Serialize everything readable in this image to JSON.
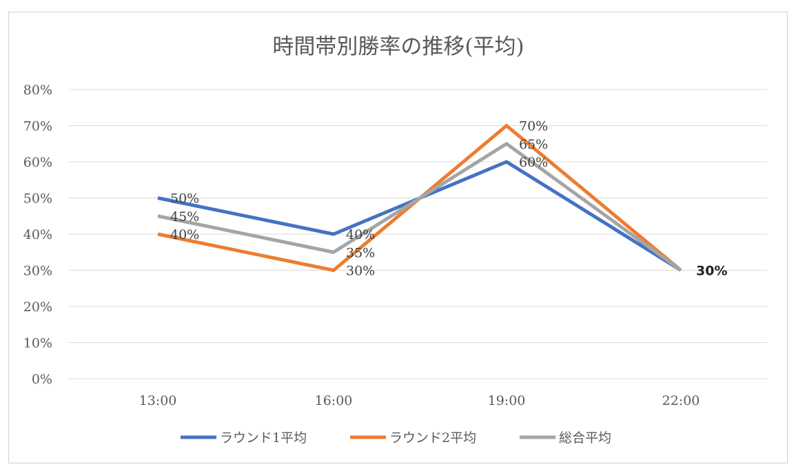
{
  "chart_data": {
    "type": "line",
    "title": "時間帯別勝率の推移(平均)",
    "categories": [
      "13:00",
      "16:00",
      "19:00",
      "22:00"
    ],
    "ylim": [
      0,
      0.8
    ],
    "y_ticks": [
      "0%",
      "10%",
      "20%",
      "30%",
      "40%",
      "50%",
      "60%",
      "70%",
      "80%"
    ],
    "grid": true,
    "legend_position": "bottom",
    "series": [
      {
        "name": "ラウンド1平均",
        "color": "#4472c4",
        "values": [
          0.5,
          0.4,
          0.6,
          0.3
        ],
        "labels": [
          "50%",
          "40%",
          "60%",
          ""
        ]
      },
      {
        "name": "ラウンド2平均",
        "color": "#ed7d31",
        "values": [
          0.4,
          0.3,
          0.7,
          0.3
        ],
        "labels": [
          "40%",
          "30%",
          "70%",
          ""
        ]
      },
      {
        "name": "総合平均",
        "color": "#a5a5a5",
        "values": [
          0.45,
          0.35,
          0.65,
          0.3
        ],
        "labels": [
          "45%",
          "35%",
          "65%",
          "30%"
        ]
      }
    ]
  }
}
